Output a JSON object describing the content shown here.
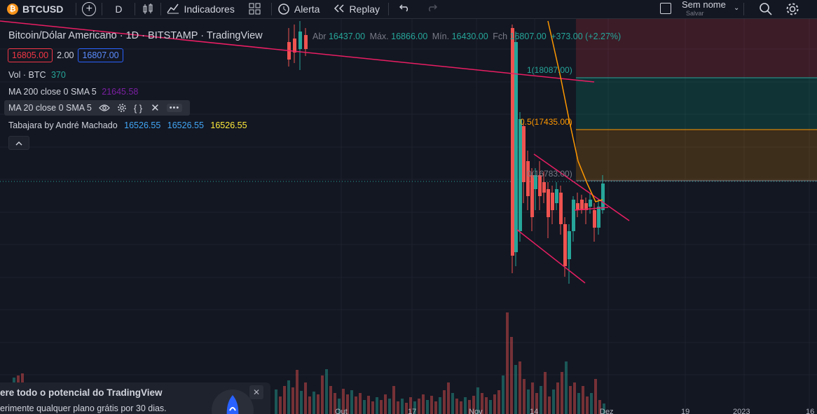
{
  "toolbar": {
    "symbol": "BTCUSD",
    "interval": "D",
    "indicators_label": "Indicadores",
    "alert_label": "Alerta",
    "replay_label": "Replay",
    "layout_name": "Sem nome",
    "layout_status": "Salvar"
  },
  "legend": {
    "title": "Bitcoin/Dólar Americano · 1D · BITSTAMP · TradingView",
    "ohlc": {
      "open_label": "Abr",
      "open": "16437.00",
      "high_label": "Máx.",
      "high": "16866.00",
      "low_label": "Mín.",
      "low": "16430.00",
      "close_label": "Fch",
      "close": "16807.00",
      "change": "+373.00 (+2.27%)"
    },
    "bid": "16805.00",
    "spread": "2.00",
    "ask": "16807.00",
    "volume_label": "Vol · BTC",
    "volume_value": "370",
    "ma200_label": "MA 200 close 0 SMA 5",
    "ma200_value": "21645.58",
    "ma20_label": "MA 20 close 0 SMA 5",
    "tabajara_label": "Tabajara by André Machado",
    "tabajara_v1": "16526.55",
    "tabajara_v2": "16526.55",
    "tabajara_v3": "16526.55"
  },
  "fib_labels": {
    "level_1": "1(18087.00)",
    "level_05": "0.5(17435.00)",
    "level_0": "0(16783.00)"
  },
  "time_axis": [
    "Out",
    "17",
    "Nov",
    "14",
    "Dez",
    "19",
    "2023",
    "16"
  ],
  "promo": {
    "title": "ere todo o potencial do TradingView",
    "subtitle": "erimente qualquer plano grátis por 30 dias."
  },
  "colors": {
    "up": "#26a69a",
    "down": "#ef5350",
    "trend": "#e91e63",
    "ma": "#ff9800",
    "bg": "#131722"
  }
}
